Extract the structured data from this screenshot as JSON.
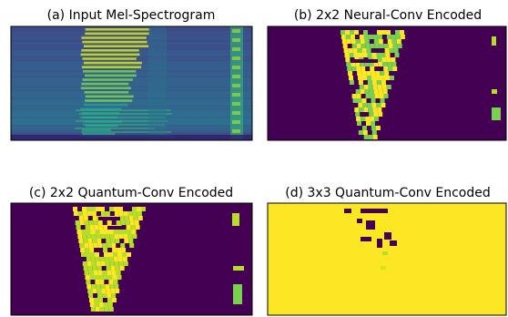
{
  "chart_data": [
    {
      "type": "heatmap",
      "title": "(a) Input Mel-Spectrogram",
      "content": "mel-spectrogram",
      "colormap": "viridis",
      "axes_visible": false
    },
    {
      "type": "heatmap",
      "title": "(b) 2x2 Neural-Conv Encoded",
      "content": "encoded map",
      "colormap": "viridis",
      "axes_visible": false
    },
    {
      "type": "heatmap",
      "title": "(c) 2x2 Quantum-Conv Encoded",
      "content": "encoded map",
      "colormap": "viridis",
      "axes_visible": false
    },
    {
      "type": "heatmap",
      "title": "(d) 3x3 Quantum-Conv Encoded",
      "content": "encoded map (mostly saturated)",
      "colormap": "viridis",
      "axes_visible": false
    }
  ],
  "colors": {
    "low": "#440154",
    "mid": "#21918c",
    "high": "#fde725",
    "light_green": "#b5de2b"
  }
}
